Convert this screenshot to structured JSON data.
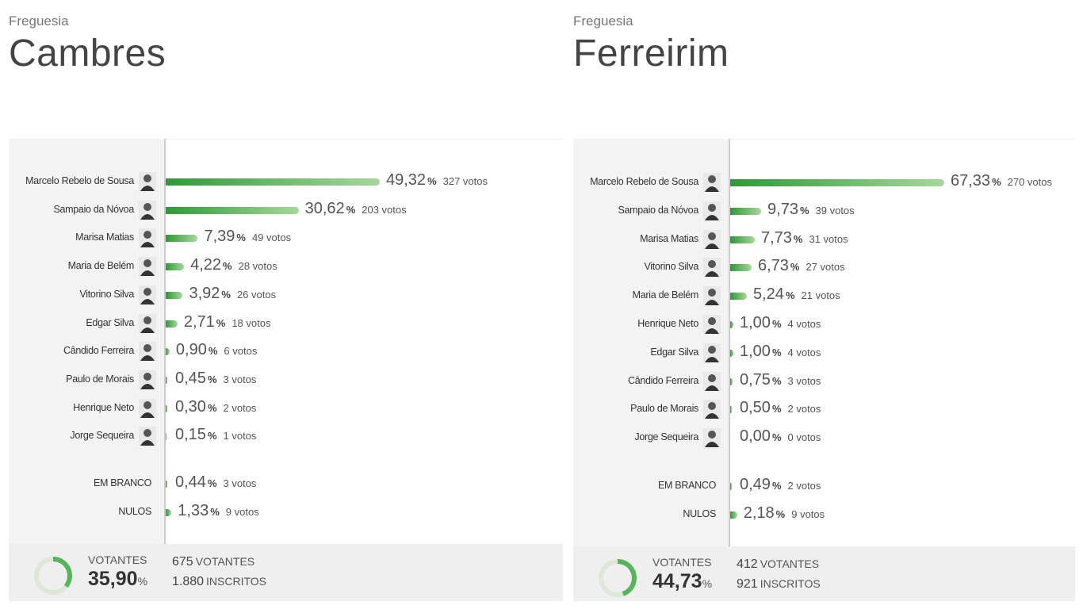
{
  "panels": [
    {
      "label": "Freguesia",
      "title": "Cambres",
      "candidates": [
        {
          "name": "Marcelo Rebelo de Sousa",
          "percent": 49.32,
          "percent_label": "49,32",
          "votes": "327 votos"
        },
        {
          "name": "Sampaio da Nóvoa",
          "percent": 30.62,
          "percent_label": "30,62",
          "votes": "203 votos"
        },
        {
          "name": "Marisa Matias",
          "percent": 7.39,
          "percent_label": "7,39",
          "votes": "49 votos"
        },
        {
          "name": "Maria de Belém",
          "percent": 4.22,
          "percent_label": "4,22",
          "votes": "28 votos"
        },
        {
          "name": "Vitorino Silva",
          "percent": 3.92,
          "percent_label": "3,92",
          "votes": "26 votos"
        },
        {
          "name": "Edgar Silva",
          "percent": 2.71,
          "percent_label": "2,71",
          "votes": "18 votos"
        },
        {
          "name": "Cândido Ferreira",
          "percent": 0.9,
          "percent_label": "0,90",
          "votes": "6 votos"
        },
        {
          "name": "Paulo de Morais",
          "percent": 0.45,
          "percent_label": "0,45",
          "votes": "3 votos"
        },
        {
          "name": "Henrique Neto",
          "percent": 0.3,
          "percent_label": "0,30",
          "votes": "2 votos"
        },
        {
          "name": "Jorge Sequeira",
          "percent": 0.15,
          "percent_label": "0,15",
          "votes": "1 votos"
        }
      ],
      "others": [
        {
          "name": "EM BRANCO",
          "percent": 0.44,
          "percent_label": "0,44",
          "votes": "3 votos"
        },
        {
          "name": "NULOS",
          "percent": 1.33,
          "percent_label": "1,33",
          "votes": "9 votos"
        }
      ],
      "unit": "%",
      "footer": {
        "label": "VOTANTES",
        "percent": 35.9,
        "percent_label": "35,90",
        "voters": "675",
        "voters_label": "VOTANTES",
        "registered": "1.880",
        "registered_label": "INSCRITOS"
      }
    },
    {
      "label": "Freguesia",
      "title": "Ferreirim",
      "candidates": [
        {
          "name": "Marcelo Rebelo de Sousa",
          "percent": 67.33,
          "percent_label": "67,33",
          "votes": "270 votos"
        },
        {
          "name": "Sampaio da Nóvoa",
          "percent": 9.73,
          "percent_label": "9,73",
          "votes": "39 votos"
        },
        {
          "name": "Marisa Matias",
          "percent": 7.73,
          "percent_label": "7,73",
          "votes": "31 votos"
        },
        {
          "name": "Vitorino Silva",
          "percent": 6.73,
          "percent_label": "6,73",
          "votes": "27 votos"
        },
        {
          "name": "Maria de Belém",
          "percent": 5.24,
          "percent_label": "5,24",
          "votes": "21 votos"
        },
        {
          "name": "Henrique Neto",
          "percent": 1.0,
          "percent_label": "1,00",
          "votes": "4 votos"
        },
        {
          "name": "Edgar Silva",
          "percent": 1.0,
          "percent_label": "1,00",
          "votes": "4 votos"
        },
        {
          "name": "Cândido Ferreira",
          "percent": 0.75,
          "percent_label": "0,75",
          "votes": "3 votos"
        },
        {
          "name": "Paulo de Morais",
          "percent": 0.5,
          "percent_label": "0,50",
          "votes": "2 votos"
        },
        {
          "name": "Jorge Sequeira",
          "percent": 0.0,
          "percent_label": "0,00",
          "votes": "0 votos"
        }
      ],
      "others": [
        {
          "name": "EM BRANCO",
          "percent": 0.49,
          "percent_label": "0,49",
          "votes": "2 votos"
        },
        {
          "name": "NULOS",
          "percent": 2.18,
          "percent_label": "2,18",
          "votes": "9 votos"
        }
      ],
      "unit": "%",
      "footer": {
        "label": "VOTANTES",
        "percent": 44.73,
        "percent_label": "44,73",
        "voters": "412",
        "voters_label": "VOTANTES",
        "registered": "921",
        "registered_label": "INSCRITOS"
      }
    }
  ]
}
